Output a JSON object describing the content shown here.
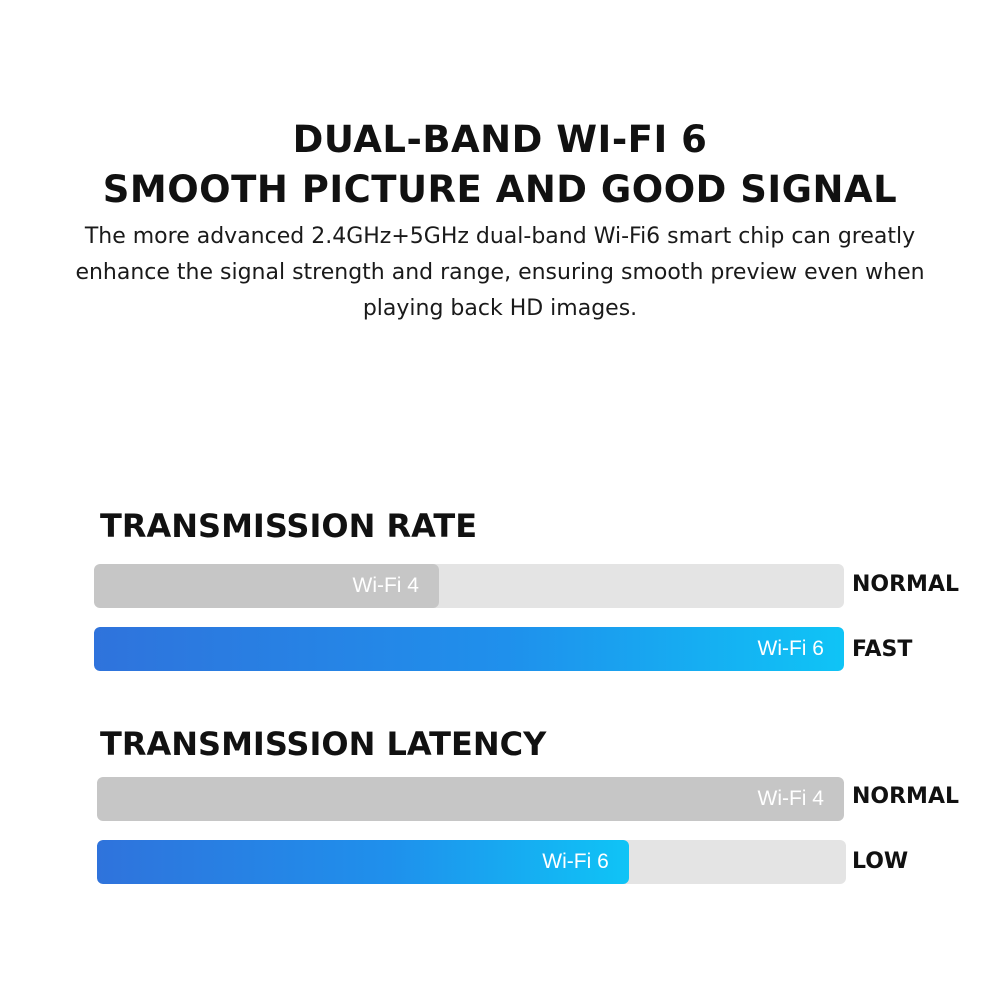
{
  "header": {
    "title_line1": "DUAL-BAND WI-FI 6",
    "title_line2": "SMOOTH PICTURE AND GOOD SIGNAL",
    "description": "The more advanced 2.4GHz+5GHz dual-band Wi-Fi6 smart chip can greatly enhance the signal strength and range, ensuring smooth preview even when playing back HD images."
  },
  "chart_data": [
    {
      "type": "bar",
      "orientation": "horizontal",
      "title": "TRANSMISSION RATE",
      "categories": [
        "Wi-Fi 4",
        "Wi-Fi 6"
      ],
      "values": [
        0.46,
        1.0
      ],
      "status_labels": [
        "NORMAL",
        "FAST"
      ],
      "colors": [
        "#c6c6c6",
        "#1f90ec"
      ]
    },
    {
      "type": "bar",
      "orientation": "horizontal",
      "title": "TRANSMISSION LATENCY",
      "categories": [
        "Wi-Fi 4",
        "Wi-Fi 6"
      ],
      "values": [
        1.0,
        0.71
      ],
      "status_labels": [
        "NORMAL",
        "LOW"
      ],
      "colors": [
        "#c6c6c6",
        "#1f90ec"
      ]
    }
  ]
}
